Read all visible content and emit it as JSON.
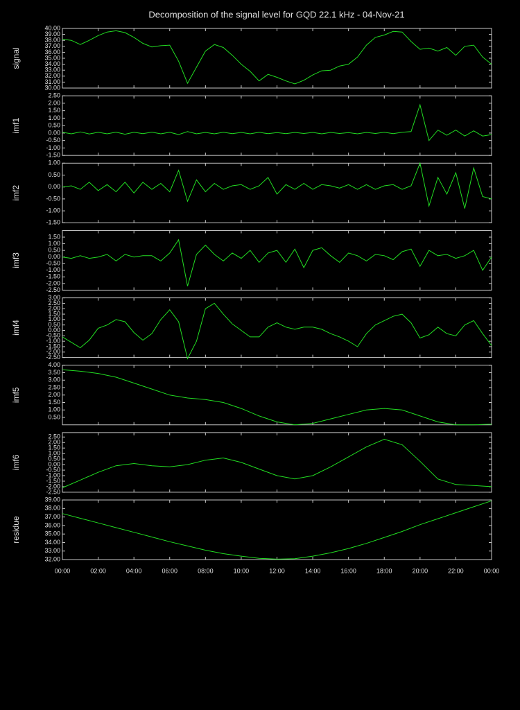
{
  "chart_data": [
    {
      "type": "line",
      "title": "Decomposition of the signal level for GQD 22.1 kHz - 04-Nov-21",
      "ylabel": "signal",
      "color": "#22dd22",
      "x": [
        0,
        0.5,
        1,
        1.5,
        2,
        2.5,
        3,
        3.5,
        4,
        4.5,
        5,
        5.5,
        6,
        6.5,
        7,
        7.5,
        8,
        8.5,
        9,
        9.5,
        10,
        10.5,
        11,
        11.5,
        12,
        12.5,
        13,
        13.5,
        14,
        14.5,
        15,
        15.5,
        16,
        16.5,
        17,
        17.5,
        18,
        18.5,
        19,
        19.5,
        20,
        20.5,
        21,
        21.5,
        22,
        22.5,
        23,
        23.5,
        24
      ],
      "values": [
        38.2,
        38,
        37.3,
        38,
        38.8,
        39.4,
        39.6,
        39.3,
        38.5,
        37.5,
        36.9,
        37.1,
        37.2,
        34.5,
        30.8,
        33.5,
        36.2,
        37.3,
        36.8,
        35.5,
        34,
        32.8,
        31.2,
        32.3,
        31.8,
        31.2,
        30.7,
        31.3,
        32.2,
        32.9,
        33,
        33.7,
        34,
        35.2,
        37.2,
        38.5,
        38.9,
        39.5,
        39.4,
        37.8,
        36.5,
        36.7,
        36.2,
        36.8,
        35.5,
        37,
        37.2,
        35.2,
        34
      ],
      "xlim": [
        0,
        24
      ],
      "ylim": [
        30,
        40
      ],
      "yticks": [
        {
          "value": 30,
          "label": "30.00"
        },
        {
          "value": 31,
          "label": "31.00"
        },
        {
          "value": 32,
          "label": "32.00"
        },
        {
          "value": 33,
          "label": "33.00"
        },
        {
          "value": 34,
          "label": "34.00"
        },
        {
          "value": 35,
          "label": "35.00"
        },
        {
          "value": 36,
          "label": "36.00"
        },
        {
          "value": 37,
          "label": "37.00"
        },
        {
          "value": 38,
          "label": "38.00"
        },
        {
          "value": 39,
          "label": "39.00"
        },
        {
          "value": 40,
          "label": "40.00"
        }
      ]
    },
    {
      "type": "line",
      "ylabel": "imf1",
      "color": "#22dd22",
      "x": [
        0,
        0.5,
        1,
        1.5,
        2,
        2.5,
        3,
        3.5,
        4,
        4.5,
        5,
        5.5,
        6,
        6.5,
        7,
        7.5,
        8,
        8.5,
        9,
        9.5,
        10,
        10.5,
        11,
        11.5,
        12,
        12.5,
        13,
        13.5,
        14,
        14.5,
        15,
        15.5,
        16,
        16.5,
        17,
        17.5,
        18,
        18.5,
        19,
        19.5,
        20,
        20.5,
        21,
        21.5,
        22,
        22.5,
        23,
        23.5,
        24
      ],
      "values": [
        0.05,
        -0.05,
        0.08,
        -0.06,
        0.05,
        -0.05,
        0.06,
        -0.08,
        0.05,
        -0.04,
        0.06,
        -0.05,
        0.05,
        -0.1,
        0.1,
        -0.05,
        0.04,
        -0.05,
        0.05,
        -0.04,
        0.04,
        -0.05,
        0.05,
        -0.04,
        0.03,
        -0.04,
        0.04,
        -0.03,
        0.04,
        -0.05,
        0.04,
        -0.03,
        0.03,
        -0.05,
        0.04,
        -0.03,
        0.05,
        -0.04,
        0.05,
        0.1,
        1.9,
        -0.5,
        0.2,
        -0.15,
        0.2,
        -0.2,
        0.15,
        -0.2,
        -0.1
      ],
      "xlim": [
        0,
        24
      ],
      "ylim": [
        -1.5,
        2.5
      ],
      "yticks": [
        {
          "value": -1.5,
          "label": "-1.50"
        },
        {
          "value": -1,
          "label": "-1.00"
        },
        {
          "value": -0.5,
          "label": "-0.50"
        },
        {
          "value": 0,
          "label": "0.00"
        },
        {
          "value": 0.5,
          "label": "0.50"
        },
        {
          "value": 1,
          "label": "1.00"
        },
        {
          "value": 1.5,
          "label": "1.50"
        },
        {
          "value": 2,
          "label": "2.00"
        },
        {
          "value": 2.5,
          "label": "2.50"
        }
      ]
    },
    {
      "type": "line",
      "ylabel": "imf2",
      "color": "#22dd22",
      "x": [
        0,
        0.5,
        1,
        1.5,
        2,
        2.5,
        3,
        3.5,
        4,
        4.5,
        5,
        5.5,
        6,
        6.5,
        7,
        7.5,
        8,
        8.5,
        9,
        9.5,
        10,
        10.5,
        11,
        11.5,
        12,
        12.5,
        13,
        13.5,
        14,
        14.5,
        15,
        15.5,
        16,
        16.5,
        17,
        17.5,
        18,
        18.5,
        19,
        19.5,
        20,
        20.5,
        21,
        21.5,
        22,
        22.5,
        23,
        23.5,
        24
      ],
      "values": [
        0,
        0.05,
        -0.1,
        0.2,
        -0.15,
        0.1,
        -0.2,
        0.2,
        -0.25,
        0.2,
        -0.1,
        0.15,
        -0.2,
        0.7,
        -0.6,
        0.3,
        -0.2,
        0.15,
        -0.1,
        0.05,
        0.1,
        -0.1,
        0.05,
        0.4,
        -0.3,
        0.1,
        -0.1,
        0.15,
        -0.1,
        0.1,
        0.05,
        -0.05,
        0.1,
        -0.1,
        0.1,
        -0.1,
        0.05,
        0.1,
        -0.1,
        0.05,
        1,
        -0.8,
        0.4,
        -0.3,
        0.6,
        -0.9,
        0.8,
        -0.4,
        -0.5
      ],
      "xlim": [
        0,
        24
      ],
      "ylim": [
        -1.5,
        1
      ],
      "yticks": [
        {
          "value": -1.5,
          "label": "-1.50"
        },
        {
          "value": -1,
          "label": "-1.00"
        },
        {
          "value": -0.5,
          "label": "-0.50"
        },
        {
          "value": 0,
          "label": "0.00"
        },
        {
          "value": 0.5,
          "label": "0.50"
        },
        {
          "value": 1,
          "label": "1.00"
        }
      ]
    },
    {
      "type": "line",
      "ylabel": "imf3",
      "color": "#22dd22",
      "x": [
        0,
        0.5,
        1,
        1.5,
        2,
        2.5,
        3,
        3.5,
        4,
        4.5,
        5,
        5.5,
        6,
        6.5,
        7,
        7.5,
        8,
        8.5,
        9,
        9.5,
        10,
        10.5,
        11,
        11.5,
        12,
        12.5,
        13,
        13.5,
        14,
        14.5,
        15,
        15.5,
        16,
        16.5,
        17,
        17.5,
        18,
        18.5,
        19,
        19.5,
        20,
        20.5,
        21,
        21.5,
        22,
        22.5,
        23,
        23.5,
        24
      ],
      "values": [
        0,
        -0.1,
        0.1,
        -0.1,
        0,
        0.2,
        -0.3,
        0.2,
        0,
        0.1,
        0.1,
        -0.3,
        0.3,
        1.3,
        -2.2,
        0.2,
        0.9,
        0.2,
        -0.3,
        0.3,
        -0.1,
        0.5,
        -0.4,
        0.3,
        0.5,
        -0.4,
        0.6,
        -0.8,
        0.5,
        0.7,
        0.1,
        -0.4,
        0.3,
        0.1,
        -0.3,
        0.2,
        0.1,
        -0.2,
        0.4,
        0.6,
        -0.7,
        0.5,
        0.1,
        0.2,
        -0.1,
        0.1,
        0.5,
        -1,
        0
      ],
      "xlim": [
        0,
        24
      ],
      "ylim": [
        -2.5,
        2
      ],
      "yticks": [
        {
          "value": -2.5,
          "label": "-2.50"
        },
        {
          "value": -2,
          "label": "-2.00"
        },
        {
          "value": -1.5,
          "label": "-1.50"
        },
        {
          "value": -1,
          "label": "-1.00"
        },
        {
          "value": -0.5,
          "label": "-0.50"
        },
        {
          "value": 0,
          "label": "0.00"
        },
        {
          "value": 0.5,
          "label": "0.50"
        },
        {
          "value": 1,
          "label": "1.00"
        },
        {
          "value": 1.5,
          "label": "1.50"
        }
      ]
    },
    {
      "type": "line",
      "ylabel": "imf4",
      "color": "#22dd22",
      "x": [
        0,
        0.5,
        1,
        1.5,
        2,
        2.5,
        3,
        3.5,
        4,
        4.5,
        5,
        5.5,
        6,
        6.5,
        7,
        7.5,
        8,
        8.5,
        9,
        9.5,
        10,
        10.5,
        11,
        11.5,
        12,
        12.5,
        13,
        13.5,
        14,
        14.5,
        15,
        15.5,
        16,
        16.5,
        17,
        17.5,
        18,
        18.5,
        19,
        19.5,
        20,
        20.5,
        21,
        21.5,
        22,
        22.5,
        23,
        23.5,
        24
      ],
      "values": [
        -0.6,
        -1.1,
        -1.6,
        -0.9,
        0.2,
        0.5,
        1,
        0.8,
        -0.2,
        -0.9,
        -0.3,
        1,
        1.9,
        0.8,
        -2.6,
        -1,
        2,
        2.5,
        1.5,
        0.6,
        0,
        -0.6,
        -0.6,
        0.3,
        0.7,
        0.3,
        0.1,
        0.3,
        0.3,
        0.1,
        -0.3,
        -0.6,
        -1,
        -1.5,
        -0.3,
        0.5,
        0.9,
        1.3,
        1.5,
        0.7,
        -0.7,
        -0.4,
        0.3,
        -0.3,
        -0.5,
        0.5,
        0.9,
        -0.3,
        -1.4
      ],
      "xlim": [
        0,
        24
      ],
      "ylim": [
        -2.5,
        3
      ],
      "yticks": [
        {
          "value": -2.5,
          "label": "-2.50"
        },
        {
          "value": -2,
          "label": "-2.00"
        },
        {
          "value": -1.5,
          "label": "-1.50"
        },
        {
          "value": -1,
          "label": "-1.00"
        },
        {
          "value": -0.5,
          "label": "-0.50"
        },
        {
          "value": 0,
          "label": "0.00"
        },
        {
          "value": 0.5,
          "label": "0.50"
        },
        {
          "value": 1,
          "label": "1.00"
        },
        {
          "value": 1.5,
          "label": "1.50"
        },
        {
          "value": 2,
          "label": "2.00"
        },
        {
          "value": 2.5,
          "label": "2.50"
        },
        {
          "value": 3,
          "label": "3.00"
        }
      ]
    },
    {
      "type": "line",
      "ylabel": "imf5",
      "color": "#22dd22",
      "x": [
        0,
        1,
        2,
        3,
        4,
        5,
        6,
        7,
        8,
        9,
        10,
        11,
        12,
        13,
        14,
        15,
        16,
        17,
        18,
        19,
        20,
        21,
        22,
        23,
        24
      ],
      "values": [
        3.7,
        3.6,
        3.45,
        3.2,
        2.8,
        2.4,
        2,
        1.8,
        1.7,
        1.5,
        1.1,
        0.6,
        0.2,
        0,
        0.1,
        0.4,
        0.7,
        1,
        1.1,
        1,
        0.6,
        0.2,
        0,
        0,
        0.05
      ],
      "xlim": [
        0,
        24
      ],
      "ylim": [
        0,
        4
      ],
      "yticks": [
        {
          "value": 0.5,
          "label": "0.50"
        },
        {
          "value": 1,
          "label": "1.00"
        },
        {
          "value": 1.5,
          "label": "1.50"
        },
        {
          "value": 2,
          "label": "2.00"
        },
        {
          "value": 2.5,
          "label": "2.50"
        },
        {
          "value": 3,
          "label": "3.00"
        },
        {
          "value": 3.5,
          "label": "3.50"
        },
        {
          "value": 4,
          "label": "4.00"
        }
      ]
    },
    {
      "type": "line",
      "ylabel": "imf6",
      "color": "#22dd22",
      "x": [
        0,
        1,
        2,
        3,
        4,
        5,
        6,
        7,
        8,
        9,
        10,
        11,
        12,
        13,
        14,
        15,
        16,
        17,
        18,
        19,
        20,
        21,
        22,
        23,
        24
      ],
      "values": [
        -2.1,
        -1.4,
        -0.7,
        -0.1,
        0.1,
        -0.1,
        -0.2,
        0,
        0.4,
        0.6,
        0.2,
        -0.4,
        -1,
        -1.3,
        -1,
        -0.2,
        0.7,
        1.6,
        2.3,
        1.8,
        0.3,
        -1.3,
        -1.8,
        -1.9,
        -2
      ],
      "xlim": [
        0,
        24
      ],
      "ylim": [
        -2.5,
        2.9
      ],
      "yticks": [
        {
          "value": -2.5,
          "label": "-2.50"
        },
        {
          "value": -2,
          "label": "-2.00"
        },
        {
          "value": -1.5,
          "label": "-1.50"
        },
        {
          "value": -1,
          "label": "-1.00"
        },
        {
          "value": -0.5,
          "label": "-0.50"
        },
        {
          "value": 0,
          "label": "0.00"
        },
        {
          "value": 0.5,
          "label": "0.50"
        },
        {
          "value": 1,
          "label": "1.00"
        },
        {
          "value": 1.5,
          "label": "1.50"
        },
        {
          "value": 2,
          "label": "2.00"
        },
        {
          "value": 2.5,
          "label": "2.50"
        }
      ]
    },
    {
      "type": "line",
      "ylabel": "residue",
      "color": "#22dd22",
      "x": [
        0,
        1,
        2,
        3,
        4,
        5,
        6,
        7,
        8,
        9,
        10,
        11,
        12,
        13,
        14,
        15,
        16,
        17,
        18,
        19,
        20,
        21,
        22,
        23,
        24
      ],
      "values": [
        37.4,
        36.85,
        36.3,
        35.75,
        35.2,
        34.65,
        34.1,
        33.6,
        33.1,
        32.7,
        32.4,
        32.15,
        32.05,
        32.1,
        32.4,
        32.8,
        33.3,
        33.9,
        34.6,
        35.3,
        36.1,
        36.8,
        37.5,
        38.2,
        38.9
      ],
      "xlim": [
        0,
        24
      ],
      "ylim": [
        32,
        39
      ],
      "yticks": [
        {
          "value": 32,
          "label": "32.00"
        },
        {
          "value": 33,
          "label": "33.00"
        },
        {
          "value": 34,
          "label": "34.00"
        },
        {
          "value": 35,
          "label": "35.00"
        },
        {
          "value": 36,
          "label": "36.00"
        },
        {
          "value": 37,
          "label": "37.00"
        },
        {
          "value": 38,
          "label": "38.00"
        },
        {
          "value": 39,
          "label": "39.00"
        }
      ],
      "xticks": [
        {
          "value": 0,
          "label": "00:00"
        },
        {
          "value": 2,
          "label": "02:00"
        },
        {
          "value": 4,
          "label": "04:00"
        },
        {
          "value": 6,
          "label": "06:00"
        },
        {
          "value": 8,
          "label": "08:00"
        },
        {
          "value": 10,
          "label": "10:00"
        },
        {
          "value": 12,
          "label": "12:00"
        },
        {
          "value": 14,
          "label": "14:00"
        },
        {
          "value": 16,
          "label": "16:00"
        },
        {
          "value": 18,
          "label": "18:00"
        },
        {
          "value": 20,
          "label": "20:00"
        },
        {
          "value": 22,
          "label": "22:00"
        },
        {
          "value": 24,
          "label": "00:00"
        }
      ]
    }
  ]
}
